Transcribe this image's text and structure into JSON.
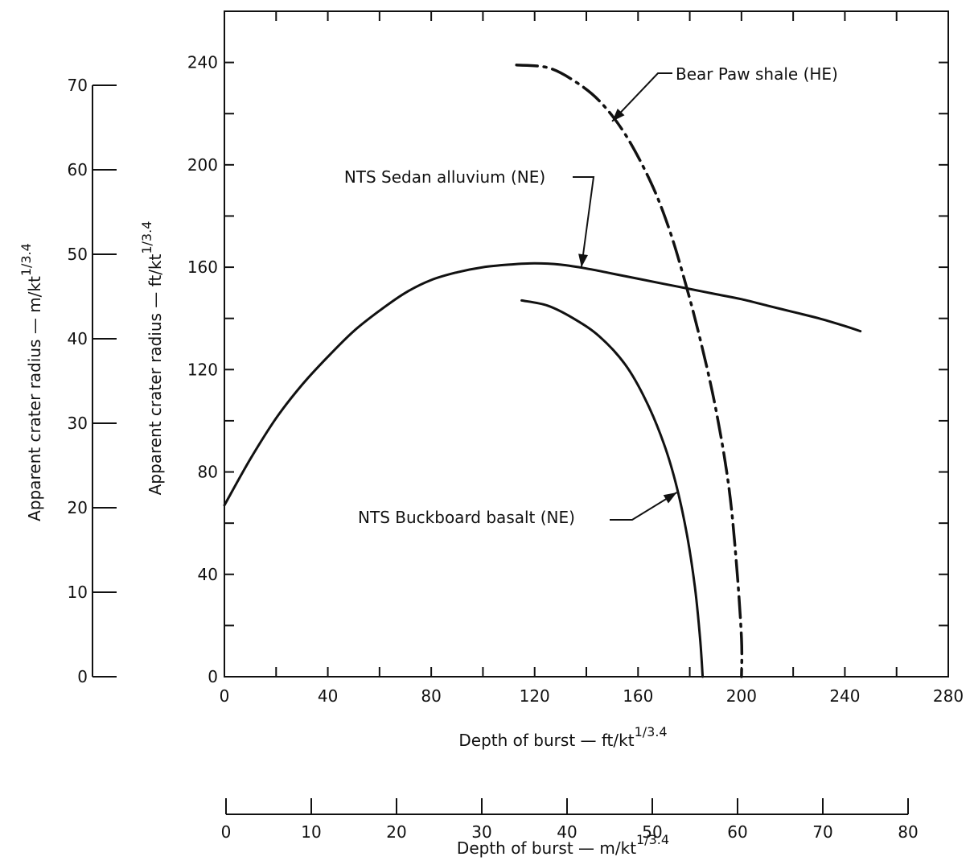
{
  "chart_data": {
    "type": "line",
    "title": "",
    "xlabel": "Depth of burst — ft/kt",
    "xlabel_exp": "1/3.4",
    "ylabel": "Apparent crater radius — ft/kt",
    "ylabel_exp": "1/3.4",
    "xlim": [
      0,
      280
    ],
    "ylim": [
      0,
      260
    ],
    "grid": false,
    "x_ticks": [
      "0",
      "40",
      "80",
      "120",
      "160",
      "200",
      "240",
      "280"
    ],
    "y_ticks": [
      "0",
      "40",
      "80",
      "120",
      "160",
      "200",
      "240"
    ],
    "secondary_x_axis": {
      "label": "Depth of burst — m/kt",
      "label_exp": "1/3.4",
      "ticks": [
        "0",
        "10",
        "20",
        "30",
        "40",
        "50",
        "60",
        "70",
        "80"
      ]
    },
    "secondary_y_axis": {
      "label": "Apparent crater radius — m/kt",
      "label_exp": "1/3.4",
      "ticks": [
        "0",
        "10",
        "20",
        "30",
        "40",
        "50",
        "60",
        "70"
      ]
    },
    "series": [
      {
        "name": "NTS Sedan alluvium (NE)",
        "style": "solid",
        "points": [
          [
            0,
            67
          ],
          [
            10,
            85
          ],
          [
            20,
            101
          ],
          [
            30,
            114
          ],
          [
            40,
            125
          ],
          [
            50,
            135
          ],
          [
            60,
            143
          ],
          [
            70,
            150
          ],
          [
            80,
            155
          ],
          [
            90,
            158
          ],
          [
            100,
            160
          ],
          [
            110,
            161
          ],
          [
            120,
            161.5
          ],
          [
            130,
            161
          ],
          [
            140,
            159.5
          ],
          [
            150,
            157.5
          ],
          [
            160,
            155.5
          ],
          [
            170,
            153.5
          ],
          [
            180,
            151.5
          ],
          [
            190,
            149.5
          ],
          [
            200,
            147.5
          ],
          [
            210,
            145
          ],
          [
            220,
            142.5
          ],
          [
            230,
            140
          ],
          [
            240,
            137
          ],
          [
            246,
            135
          ]
        ]
      },
      {
        "name": "NTS Buckboard basalt (NE)",
        "style": "solid",
        "points": [
          [
            115,
            147
          ],
          [
            125,
            145
          ],
          [
            135,
            140
          ],
          [
            145,
            133
          ],
          [
            155,
            122
          ],
          [
            163,
            108
          ],
          [
            170,
            91
          ],
          [
            175,
            74
          ],
          [
            179,
            55
          ],
          [
            182,
            35
          ],
          [
            184,
            15
          ],
          [
            185,
            0
          ]
        ]
      },
      {
        "name": "Bear Paw shale (HE)",
        "style": "dash-dot",
        "points": [
          [
            113,
            239
          ],
          [
            125,
            238
          ],
          [
            135,
            233
          ],
          [
            145,
            225
          ],
          [
            155,
            212
          ],
          [
            165,
            193
          ],
          [
            172,
            175
          ],
          [
            178,
            155
          ],
          [
            184,
            132
          ],
          [
            190,
            105
          ],
          [
            195,
            75
          ],
          [
            198,
            45
          ],
          [
            200,
            15
          ],
          [
            200,
            0
          ]
        ]
      }
    ],
    "annotations": [
      {
        "text": "Bear Paw shale (HE)",
        "points_to": [
          150,
          217
        ]
      },
      {
        "text": "NTS Sedan alluvium (NE)",
        "points_to": [
          135,
          160
        ]
      },
      {
        "text": "NTS Buckboard basalt (NE)",
        "points_to": [
          175,
          72
        ]
      }
    ]
  }
}
